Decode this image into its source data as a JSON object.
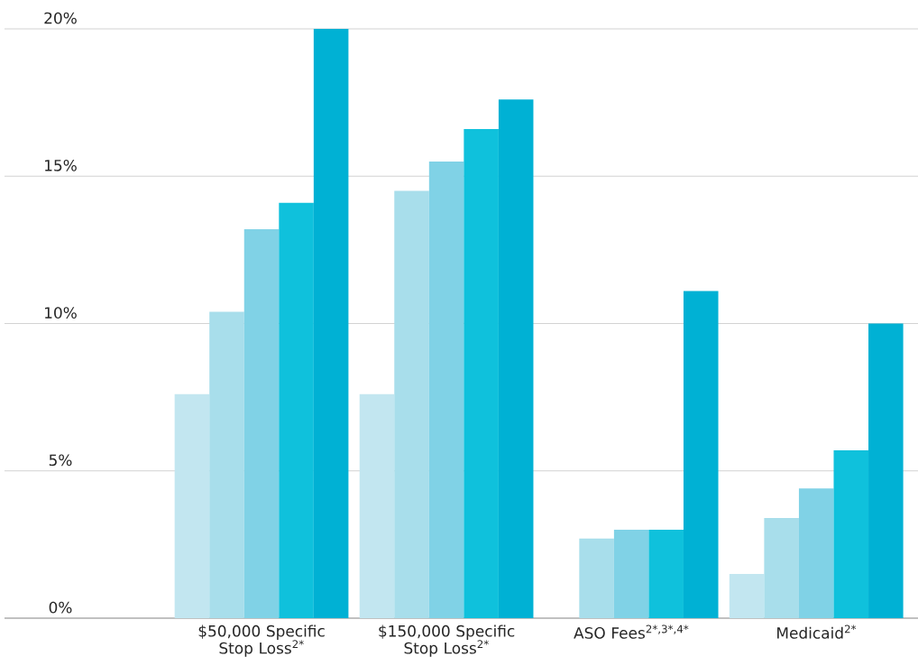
{
  "chart_data": {
    "type": "bar",
    "categories": [
      "$50,000 Specific Stop Loss$^{2*}$",
      "$150,000 Specific Stop Loss$^{2*}$",
      "ASO Fees$^{2*,3*,4*}$",
      "Medicaid$^{2*}$"
    ],
    "series": [
      {
        "color": "#c2e6f0",
        "values": [
          7.6,
          7.6,
          null,
          1.5
        ]
      },
      {
        "color": "#a8deeb",
        "values": [
          10.4,
          14.5,
          2.7,
          3.4
        ]
      },
      {
        "color": "#80d2e6",
        "values": [
          13.2,
          15.5,
          3.0,
          4.4
        ]
      },
      {
        "color": "#0fc1dc",
        "values": [
          14.1,
          16.6,
          3.0,
          5.7
        ]
      },
      {
        "color": "#00b1d4",
        "values": [
          20.0,
          17.6,
          11.1,
          10.0
        ]
      }
    ],
    "ylim": [
      0,
      20
    ],
    "yticks": [
      {
        "value": 0,
        "label": "0%"
      },
      {
        "value": 5,
        "label": "5%"
      },
      {
        "value": 10,
        "label": "10%"
      },
      {
        "value": 15,
        "label": "15%"
      },
      {
        "value": 20,
        "label": "20%"
      }
    ],
    "grid": "y"
  }
}
